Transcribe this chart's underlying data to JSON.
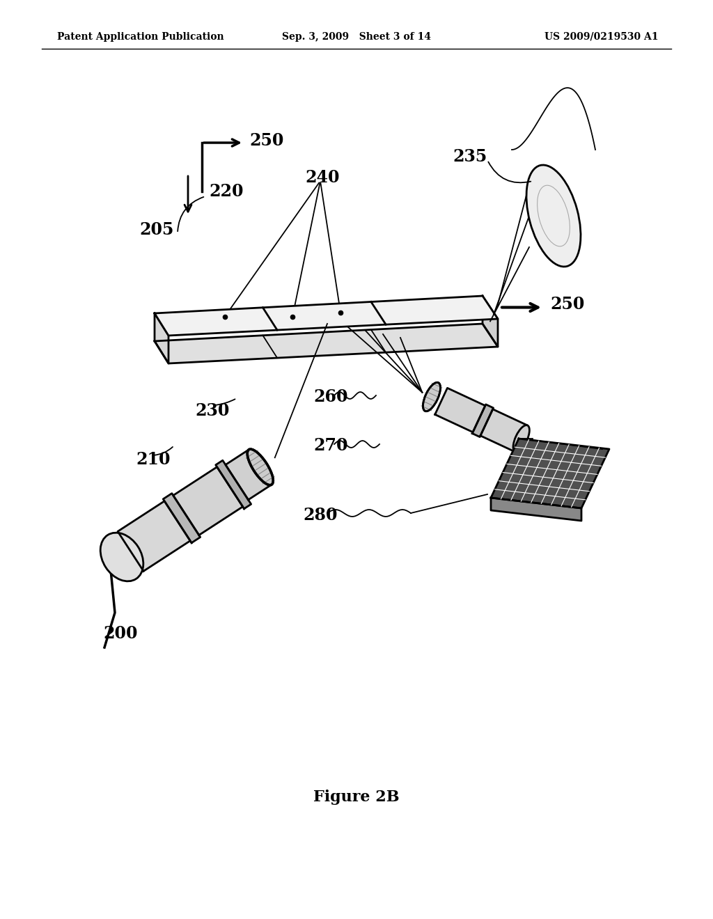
{
  "background_color": "#ffffff",
  "header_left": "Patent Application Publication",
  "header_center": "Sep. 3, 2009   Sheet 3 of 14",
  "header_right": "US 2009/0219530 A1",
  "figure_label": "Figure 2B",
  "text_color": "#000000",
  "line_color": "#000000"
}
